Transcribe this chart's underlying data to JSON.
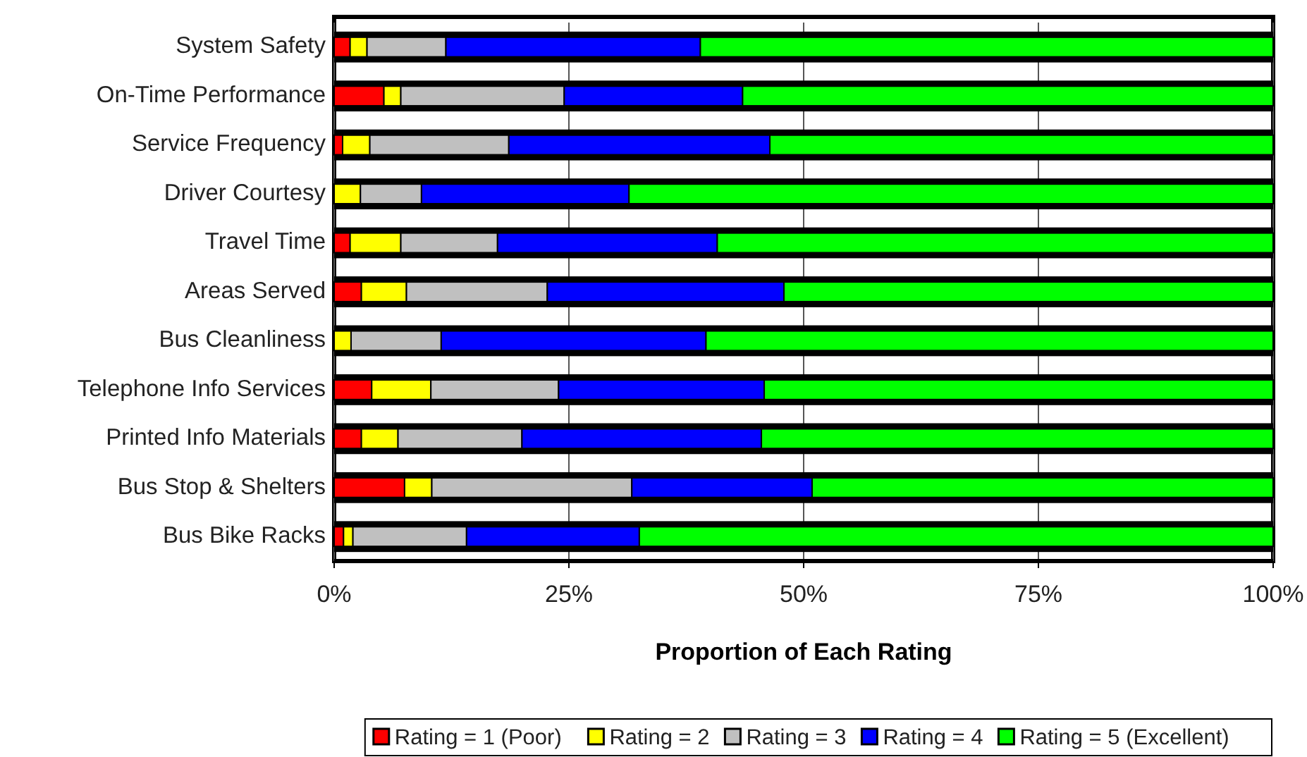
{
  "chart_data": {
    "type": "bar",
    "orientation": "horizontal",
    "stacked": true,
    "xlabel": "Proportion of Each Rating",
    "categories": [
      "System Safety",
      "On-Time Performance",
      "Service Frequency",
      "Driver Courtesy",
      "Travel Time",
      "Areas Served",
      "Bus Cleanliness",
      "Telephone Info Services",
      "Printed Info Materials",
      "Bus Stop & Shelters",
      "Bus Bike Racks"
    ],
    "series": [
      {
        "name": "Rating = 1 (Poor)",
        "color": "#ff0000",
        "values": [
          1.7,
          5.3,
          0.9,
          0,
          1.7,
          2.9,
          0,
          4.0,
          2.9,
          7.5,
          1.0
        ]
      },
      {
        "name": "Rating = 2",
        "color": "#ffff00",
        "values": [
          1.8,
          1.8,
          2.9,
          2.8,
          5.4,
          4.8,
          1.8,
          6.3,
          3.9,
          2.9,
          1.0
        ]
      },
      {
        "name": "Rating = 3",
        "color": "#c0c0c0",
        "values": [
          8.4,
          17.4,
          14.8,
          6.5,
          10.3,
          15.0,
          9.6,
          13.6,
          13.2,
          21.3,
          12.1
        ]
      },
      {
        "name": "Rating = 4",
        "color": "#0000ff",
        "values": [
          27.1,
          19.0,
          27.8,
          22.1,
          23.4,
          25.2,
          28.2,
          21.9,
          25.5,
          19.2,
          18.4
        ]
      },
      {
        "name": "Rating = 5 (Excellent)",
        "color": "#00ff00",
        "values": [
          61.0,
          56.5,
          53.6,
          68.6,
          59.2,
          52.1,
          60.4,
          54.2,
          54.5,
          49.1,
          67.5
        ]
      }
    ],
    "xlim": [
      0,
      100
    ],
    "xticks": [
      {
        "value": 0,
        "label": "0%"
      },
      {
        "value": 25,
        "label": "25%"
      },
      {
        "value": 50,
        "label": "50%"
      },
      {
        "value": 75,
        "label": "75%"
      },
      {
        "value": 100,
        "label": "100%"
      }
    ],
    "grid": "x",
    "legend": "bottom"
  }
}
